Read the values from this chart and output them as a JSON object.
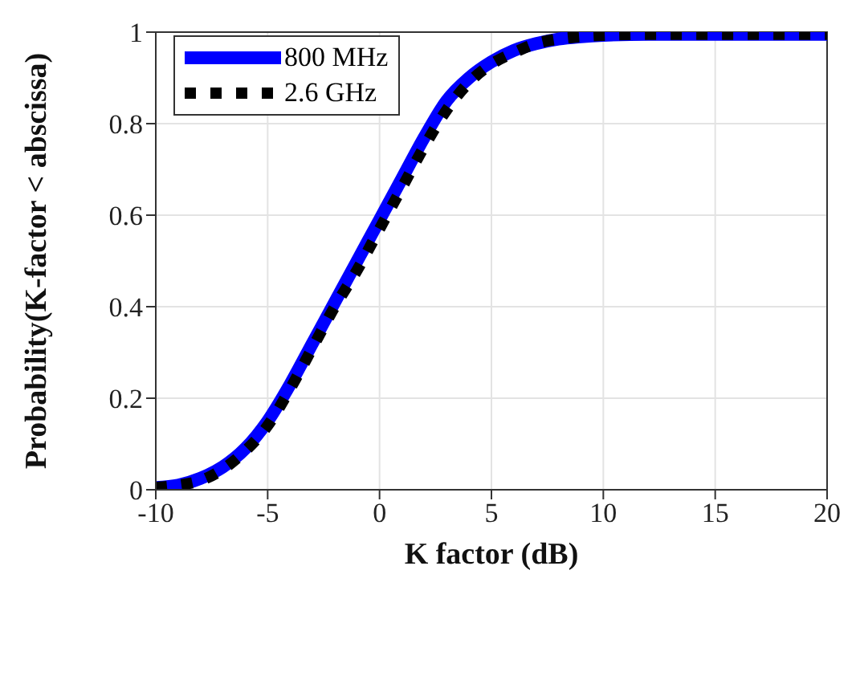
{
  "chart_data": {
    "type": "line",
    "xlabel": "K factor (dB)",
    "ylabel": "Probability(K-factor < abscissa)",
    "x": [
      -10,
      -9,
      -8,
      -7,
      -6,
      -5,
      -4,
      -3,
      -2,
      -1,
      0,
      1,
      2,
      3,
      4,
      5,
      6,
      7,
      8,
      9,
      10,
      12,
      15,
      20
    ],
    "series": [
      {
        "name": "800 MHz",
        "color": "#0000ff",
        "line_style": "solid",
        "values": [
          0.005,
          0.01,
          0.025,
          0.05,
          0.09,
          0.15,
          0.23,
          0.32,
          0.41,
          0.5,
          0.59,
          0.68,
          0.77,
          0.85,
          0.9,
          0.935,
          0.96,
          0.975,
          0.985,
          0.99,
          0.993,
          0.995,
          0.995,
          0.995
        ]
      },
      {
        "name": "2.6 GHz",
        "color": "#000000",
        "line_style": "dotted",
        "values": [
          0.005,
          0.01,
          0.02,
          0.045,
          0.085,
          0.14,
          0.22,
          0.31,
          0.4,
          0.48,
          0.57,
          0.66,
          0.75,
          0.83,
          0.89,
          0.93,
          0.955,
          0.975,
          0.985,
          0.99,
          0.993,
          0.995,
          0.995,
          0.995
        ]
      }
    ],
    "xlim": [
      -10,
      20
    ],
    "xticks": [
      -10,
      -5,
      0,
      5,
      10,
      15,
      20
    ],
    "ylim": [
      0,
      1
    ],
    "yticks": [
      0,
      0.2,
      0.4,
      0.6,
      0.8,
      1
    ],
    "grid": true,
    "legend": "top left",
    "marker": "none"
  }
}
